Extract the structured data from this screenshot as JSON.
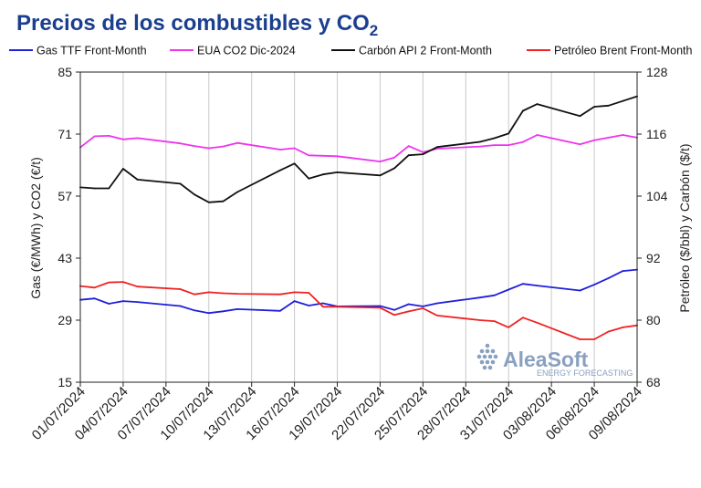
{
  "chart_data": {
    "type": "line",
    "title": "Precios de los combustibles y CO",
    "title_subscript": "2",
    "ylabel_left": "Gas (€/MWh) y CO2 (€/t)",
    "ylabel_right": "Petróleo ($/bbl) y Carbón ($/t)",
    "ylim_left": [
      15,
      85
    ],
    "ylim_right": [
      68,
      128
    ],
    "yticks_left": [
      "15",
      "29",
      "43",
      "57",
      "71",
      "85"
    ],
    "yticks_right": [
      "68",
      "80",
      "92",
      "104",
      "116",
      "128"
    ],
    "xlim": [
      "2024-07-01",
      "2024-08-09"
    ],
    "xticks": [
      "01/07/2024",
      "04/07/2024",
      "07/07/2024",
      "10/07/2024",
      "13/07/2024",
      "16/07/2024",
      "19/07/2024",
      "22/07/2024",
      "25/07/2024",
      "28/07/2024",
      "31/07/2024",
      "03/08/2024",
      "06/08/2024",
      "09/08/2024"
    ],
    "grid": "vertical",
    "legend_position": "top",
    "series": [
      {
        "name": "Gas TTF Front-Month",
        "axis": "left",
        "color": "#1f1fdc",
        "x": [
          "2024-07-01",
          "2024-07-02",
          "2024-07-03",
          "2024-07-04",
          "2024-07-05",
          "2024-07-08",
          "2024-07-09",
          "2024-07-10",
          "2024-07-11",
          "2024-07-12",
          "2024-07-15",
          "2024-07-16",
          "2024-07-17",
          "2024-07-18",
          "2024-07-19",
          "2024-07-22",
          "2024-07-23",
          "2024-07-24",
          "2024-07-25",
          "2024-07-26",
          "2024-07-29",
          "2024-07-30",
          "2024-07-31",
          "2024-08-01",
          "2024-08-02",
          "2024-08-05",
          "2024-08-06",
          "2024-08-07",
          "2024-08-08",
          "2024-08-09"
        ],
        "values": [
          33.6,
          33.9,
          32.7,
          33.3,
          33.1,
          32.2,
          31.2,
          30.6,
          31.0,
          31.5,
          31.1,
          33.3,
          32.3,
          32.8,
          32.1,
          32.2,
          31.3,
          32.6,
          32.1,
          32.8,
          34.1,
          34.6,
          35.9,
          37.2,
          36.8,
          35.7,
          37.0,
          38.5,
          40.1,
          40.4
        ]
      },
      {
        "name": "EUA CO2 Dic-2024",
        "axis": "left",
        "color": "#ee33ee",
        "x": [
          "2024-07-01",
          "2024-07-02",
          "2024-07-03",
          "2024-07-04",
          "2024-07-05",
          "2024-07-08",
          "2024-07-09",
          "2024-07-10",
          "2024-07-11",
          "2024-07-12",
          "2024-07-15",
          "2024-07-16",
          "2024-07-17",
          "2024-07-18",
          "2024-07-19",
          "2024-07-22",
          "2024-07-23",
          "2024-07-24",
          "2024-07-25",
          "2024-07-26",
          "2024-07-29",
          "2024-07-30",
          "2024-07-31",
          "2024-08-01",
          "2024-08-02",
          "2024-08-05",
          "2024-08-06",
          "2024-08-07",
          "2024-08-08",
          "2024-08-09"
        ],
        "values": [
          68.0,
          70.5,
          70.6,
          69.8,
          70.1,
          68.9,
          68.3,
          67.8,
          68.2,
          69.0,
          67.5,
          67.8,
          66.2,
          66.1,
          66.0,
          64.8,
          65.7,
          68.3,
          66.9,
          67.7,
          68.2,
          68.5,
          68.5,
          69.2,
          70.8,
          68.7,
          69.6,
          70.2,
          70.8,
          70.2
        ]
      },
      {
        "name": "Carbón API 2 Front-Month",
        "axis": "right",
        "color": "#111111",
        "x": [
          "2024-07-01",
          "2024-07-02",
          "2024-07-03",
          "2024-07-04",
          "2024-07-05",
          "2024-07-08",
          "2024-07-09",
          "2024-07-10",
          "2024-07-11",
          "2024-07-12",
          "2024-07-15",
          "2024-07-16",
          "2024-07-17",
          "2024-07-18",
          "2024-07-19",
          "2024-07-22",
          "2024-07-23",
          "2024-07-24",
          "2024-07-25",
          "2024-07-26",
          "2024-07-29",
          "2024-07-30",
          "2024-07-31",
          "2024-08-01",
          "2024-08-02",
          "2024-08-05",
          "2024-08-06",
          "2024-08-07",
          "2024-08-08",
          "2024-08-09"
        ],
        "values": [
          105.7,
          105.5,
          105.5,
          109.3,
          107.2,
          106.4,
          104.3,
          102.8,
          103.0,
          104.8,
          109.0,
          110.3,
          107.4,
          108.2,
          108.6,
          108.0,
          109.4,
          111.9,
          112.1,
          113.5,
          114.5,
          115.2,
          116.1,
          120.5,
          121.8,
          119.5,
          121.3,
          121.5,
          122.4,
          123.3
        ]
      },
      {
        "name": "Petróleo Brent Front-Month",
        "axis": "right",
        "color": "#ee2222",
        "x": [
          "2024-07-01",
          "2024-07-02",
          "2024-07-03",
          "2024-07-04",
          "2024-07-05",
          "2024-07-08",
          "2024-07-09",
          "2024-07-10",
          "2024-07-11",
          "2024-07-12",
          "2024-07-15",
          "2024-07-16",
          "2024-07-17",
          "2024-07-18",
          "2024-07-19",
          "2024-07-22",
          "2024-07-23",
          "2024-07-24",
          "2024-07-25",
          "2024-07-26",
          "2024-07-29",
          "2024-07-30",
          "2024-07-31",
          "2024-08-01",
          "2024-08-02",
          "2024-08-05",
          "2024-08-06",
          "2024-08-07",
          "2024-08-08",
          "2024-08-09"
        ],
        "values": [
          86.6,
          86.3,
          87.3,
          87.4,
          86.5,
          86.0,
          85.0,
          85.4,
          85.2,
          85.1,
          85.0,
          85.4,
          85.3,
          82.6,
          82.6,
          82.4,
          81.0,
          81.7,
          82.3,
          80.9,
          80.0,
          79.8,
          78.6,
          80.5,
          79.5,
          76.3,
          76.3,
          77.8,
          78.6,
          79.0
        ]
      }
    ]
  },
  "watermark": {
    "brand": "AleaSoft",
    "tagline": "ENERGY FORECASTING",
    "color": "#8aa0c0"
  },
  "colors": {
    "title": "#1b3f8f",
    "axis": "#222222",
    "grid": "#c9c9c9"
  }
}
